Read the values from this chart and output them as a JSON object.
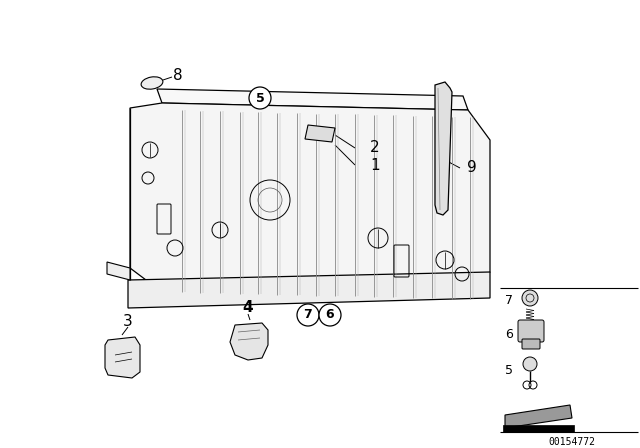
{
  "background_color": "#ffffff",
  "diagram_id": "00154772",
  "fig_width": 6.4,
  "fig_height": 4.48,
  "dpi": 100,
  "panel_color": "#ffffff",
  "panel_edge": "#000000",
  "label_fontsize": 10,
  "circle_label_fontsize": 9
}
